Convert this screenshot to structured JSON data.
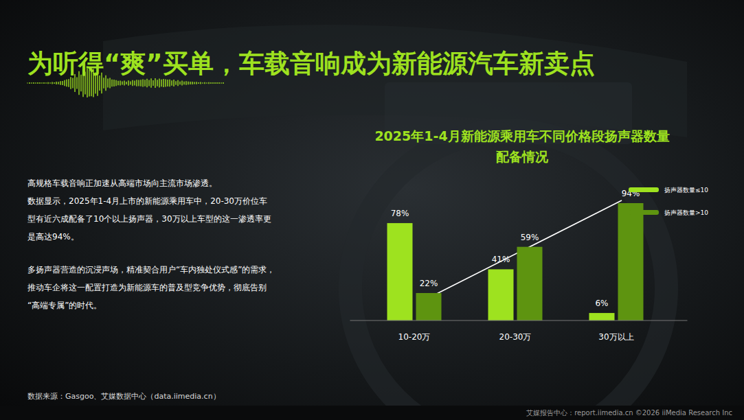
{
  "header": {
    "title": "为听得“爽”买单，车载音响成为新能源汽车新卖点"
  },
  "text": [
    [
      "高规格车载音响正加速从高端市场向主流市场渗透。",
      "数据显示，2025年1-4月上市的新能源乘用车中，20-30万价位车",
      "型有近六成配备了10个以上扬声器，30万以上车型的这一渗透率更",
      "是高达94%。"
    ],
    [
      "多扬声器营造的沉浸声场，精准契合用户“车内独处仪式感”的需求，",
      "推动车企将这一配置打造为新能源车的普及型竞争优势，彻底告别",
      "“高端专属”的时代。"
    ]
  ],
  "footer": {
    "source": "数据来源：Gasgoo、艾媒数据中心（data.iimedia.cn）",
    "credit": "艾媒报告中心：report.iimedia.cn   ©2026  iiMedia Research  Inc"
  },
  "chart_data": {
    "type": "bar",
    "title": [
      "2025年1-4月新能源乘用车不同价格段扬声器数量",
      "配备情况"
    ],
    "categories": [
      "10-20万",
      "20-30万",
      "30万以上"
    ],
    "series": [
      {
        "name": "扬声器数量≤10",
        "color": "#9ee21f",
        "values": [
          78,
          41,
          6
        ],
        "value_labels": [
          "78%",
          "41%",
          "6%"
        ]
      },
      {
        "name": "扬声器数量>10",
        "color": "#5e9410",
        "values": [
          22,
          59,
          94
        ],
        "value_labels": [
          "22%",
          "59%",
          "94%"
        ]
      }
    ],
    "data_labels": true,
    "legend": "upper right",
    "tick_labels": "x"
  }
}
